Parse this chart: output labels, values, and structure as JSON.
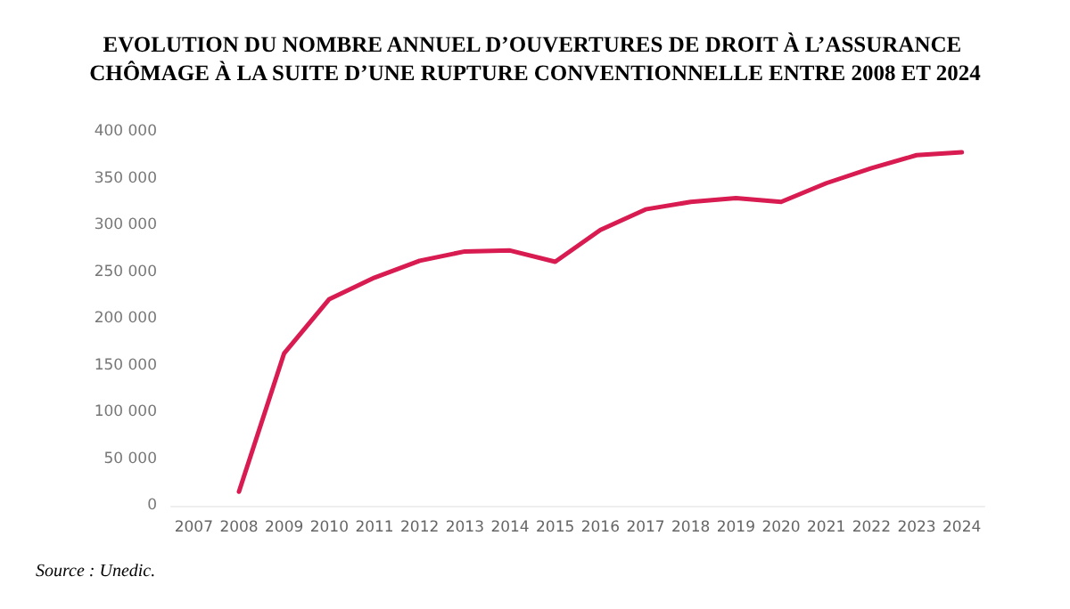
{
  "chart_data": {
    "type": "line",
    "title": "EVOLUTION DU NOMBRE ANNUEL D’OUVERTURES DE DROIT À L’ASSURANCE CHÔMAGE À LA SUITE D’UNE RUPTURE CONVENTIONNELLE ENTRE 2008 ET 2024",
    "categories": [
      "2007",
      "2008",
      "2009",
      "2010",
      "2011",
      "2012",
      "2013",
      "2014",
      "2015",
      "2016",
      "2017",
      "2018",
      "2019",
      "2020",
      "2021",
      "2022",
      "2023",
      "2024"
    ],
    "series": [
      {
        "color": "#d81b50",
        "values": [
          null,
          15000,
          163000,
          221000,
          244000,
          262000,
          272000,
          273000,
          261000,
          295000,
          317000,
          325000,
          329000,
          325000,
          345000,
          361000,
          375000,
          378000
        ]
      }
    ],
    "ylim": [
      0,
      400000
    ],
    "yticks": [
      0,
      {
        "value": 50000,
        "label": "50 000"
      },
      {
        "value": 100000,
        "label": "100 000"
      },
      {
        "value": 150000,
        "label": "150 000"
      },
      {
        "value": 200000,
        "label": "200 000"
      },
      {
        "value": 250000,
        "label": "250 000"
      },
      {
        "value": 300000,
        "label": "300 000"
      },
      {
        "value": 350000,
        "label": "350 000"
      },
      {
        "value": 400000,
        "label": "400 000"
      }
    ],
    "grid": false,
    "marker": "none",
    "line_style": "solid",
    "annotations": [
      "Source : Unedic."
    ]
  }
}
